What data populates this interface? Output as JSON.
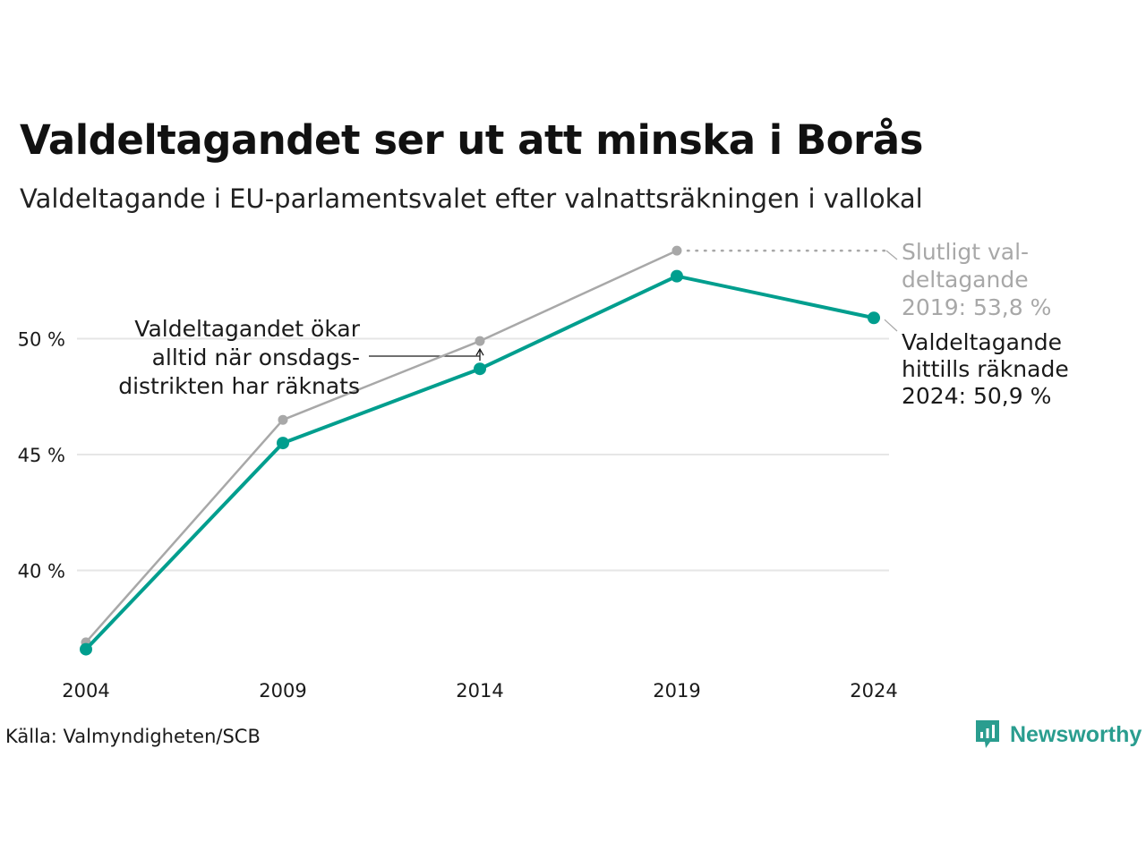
{
  "header": {
    "title": "Valdeltagandet ser ut att minska i Borås",
    "subtitle": "Valdeltagande i EU-parlamentsvalet efter valnattsräkningen i vallokal"
  },
  "footer": {
    "source": "Källa: Valmyndigheten/SCB",
    "brand": "Newsworthy"
  },
  "colors": {
    "counted": "#009e8e",
    "final": "#a8a8a8",
    "grid": "#e6e6e6",
    "brand": "#2a9d8f"
  },
  "chart_data": {
    "type": "line",
    "title": "Valdeltagandet ser ut att minska i Borås",
    "subtitle": "Valdeltagande i EU-parlamentsvalet efter valnattsräkningen i vallokal",
    "x": [
      "2004",
      "2009",
      "2014",
      "2019",
      "2024"
    ],
    "series": [
      {
        "key": "final",
        "values": [
          36.9,
          46.5,
          49.9,
          53.8,
          null
        ]
      },
      {
        "key": "counted",
        "values": [
          36.6,
          45.5,
          48.7,
          52.7,
          50.9
        ]
      }
    ],
    "ylim": [
      34.5,
      54.5
    ],
    "yticks": [
      40,
      45,
      50
    ],
    "ytick_labels": [
      "40 %",
      "45 %",
      "50 %"
    ],
    "grid": true,
    "annotations": {
      "wednesday": [
        "Valdeltagandet ökar",
        "alltid när onsdags-",
        "distrikten har räknats"
      ],
      "final_2019": [
        "Slutligt val-",
        "deltagande",
        "2019: 53,8 %"
      ],
      "counted_2024": [
        "Valdeltagande",
        "hittills räknade",
        "2024: 50,9 %"
      ]
    }
  }
}
